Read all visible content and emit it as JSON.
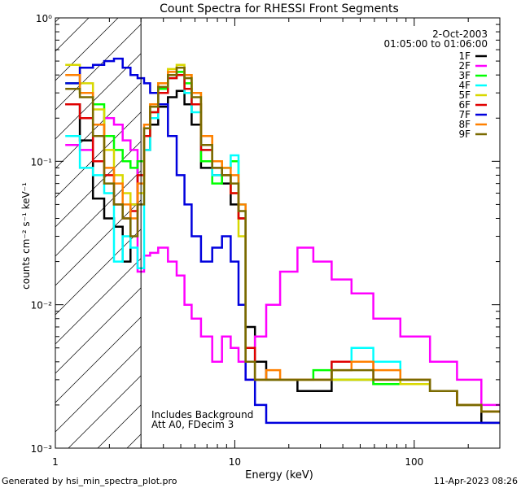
{
  "chart_data": {
    "type": "line",
    "title": "Count Spectra for RHESSI Front Segments",
    "xlabel": "Energy (keV)",
    "ylabel": "counts cm⁻² s⁻¹ keV⁻¹",
    "xscale": "log",
    "yscale": "log",
    "xlim": [
      1.0,
      300.0
    ],
    "ylim": [
      0.001,
      1.0
    ],
    "x_ticks": [
      {
        "v": 1,
        "label": "1"
      },
      {
        "v": 10,
        "label": "10"
      },
      {
        "v": 100,
        "label": "100"
      }
    ],
    "y_ticks": [
      {
        "v": 0.001,
        "label": "10⁻³"
      },
      {
        "v": 0.01,
        "label": "10⁻²"
      },
      {
        "v": 0.1,
        "label": "10⁻¹"
      },
      {
        "v": 1,
        "label": "10⁰"
      }
    ],
    "date": "2-Oct-2003",
    "time_range": "01:05:00 to 01:06:00",
    "legend_position": "top-right",
    "annotations": [
      "Includes Background",
      "Att A0, FDecim 3"
    ],
    "attenuator_cutoff_kev": 3.0,
    "series": [
      {
        "name": "1F",
        "color": "#000000",
        "x": [
          1.25,
          1.5,
          1.75,
          2.0,
          2.25,
          2.5,
          2.75,
          3.0,
          3.25,
          3.5,
          4.0,
          4.5,
          5.0,
          5.5,
          6.0,
          7.0,
          8.0,
          9.0,
          10.0,
          11.0,
          12.0,
          14.0,
          16.0,
          20.0,
          25.0,
          30.0,
          40.0,
          50.0,
          70.0,
          100.0,
          150.0,
          200.0,
          280.0
        ],
        "y": [
          0.25,
          0.14,
          0.055,
          0.04,
          0.035,
          0.02,
          0.05,
          0.1,
          0.12,
          0.18,
          0.24,
          0.28,
          0.31,
          0.25,
          0.18,
          0.09,
          0.08,
          0.07,
          0.05,
          0.04,
          0.007,
          0.004,
          0.003,
          0.003,
          0.0025,
          0.0025,
          0.003,
          0.003,
          0.0028,
          0.0028,
          0.0025,
          0.002,
          0.0015
        ]
      },
      {
        "name": "2F",
        "color": "#ff00ff",
        "x": [
          1.25,
          1.5,
          1.75,
          2.0,
          2.25,
          2.5,
          2.75,
          3.0,
          3.25,
          3.5,
          4.0,
          4.5,
          5.0,
          5.5,
          6.0,
          7.0,
          8.0,
          9.0,
          10.0,
          11.0,
          12.0,
          14.0,
          16.0,
          20.0,
          25.0,
          30.0,
          40.0,
          50.0,
          70.0,
          100.0,
          150.0,
          200.0,
          280.0
        ],
        "y": [
          0.13,
          0.12,
          0.15,
          0.2,
          0.18,
          0.14,
          0.12,
          0.017,
          0.022,
          0.023,
          0.025,
          0.02,
          0.016,
          0.01,
          0.008,
          0.006,
          0.004,
          0.006,
          0.005,
          0.004,
          0.003,
          0.006,
          0.01,
          0.017,
          0.025,
          0.02,
          0.015,
          0.012,
          0.008,
          0.006,
          0.004,
          0.003,
          0.002
        ]
      },
      {
        "name": "3F",
        "color": "#00ff00",
        "x": [
          1.25,
          1.5,
          1.75,
          2.0,
          2.25,
          2.5,
          2.75,
          3.0,
          3.25,
          3.5,
          4.0,
          4.5,
          5.0,
          5.5,
          6.0,
          7.0,
          8.0,
          9.0,
          10.0,
          11.0,
          12.0,
          14.0,
          16.0,
          20.0,
          25.0,
          30.0,
          40.0,
          50.0,
          70.0,
          100.0,
          150.0,
          200.0,
          280.0
        ],
        "y": [
          0.35,
          0.3,
          0.25,
          0.15,
          0.12,
          0.1,
          0.09,
          0.1,
          0.15,
          0.22,
          0.32,
          0.4,
          0.42,
          0.35,
          0.25,
          0.1,
          0.07,
          0.09,
          0.1,
          0.05,
          0.005,
          0.003,
          0.003,
          0.003,
          0.003,
          0.0035,
          0.003,
          0.003,
          0.0028,
          0.003,
          0.0025,
          0.002,
          0.0018
        ]
      },
      {
        "name": "4F",
        "color": "#00ffff",
        "x": [
          1.25,
          1.5,
          1.75,
          2.0,
          2.25,
          2.5,
          2.75,
          3.0,
          3.25,
          3.5,
          4.0,
          4.5,
          5.0,
          5.5,
          6.0,
          7.0,
          8.0,
          9.0,
          10.0,
          11.0,
          12.0,
          14.0,
          16.0,
          20.0,
          25.0,
          30.0,
          40.0,
          50.0,
          70.0,
          100.0,
          150.0,
          200.0,
          280.0
        ],
        "y": [
          0.15,
          0.09,
          0.08,
          0.06,
          0.02,
          0.03,
          0.025,
          0.018,
          0.12,
          0.2,
          0.3,
          0.38,
          0.4,
          0.3,
          0.22,
          0.12,
          0.08,
          0.09,
          0.11,
          0.05,
          0.004,
          0.003,
          0.003,
          0.003,
          0.003,
          0.003,
          0.004,
          0.005,
          0.004,
          0.003,
          0.0025,
          0.002,
          0.0018
        ]
      },
      {
        "name": "5F",
        "color": "#d8d800",
        "x": [
          1.25,
          1.5,
          1.75,
          2.0,
          2.25,
          2.5,
          2.75,
          3.0,
          3.25,
          3.5,
          4.0,
          4.5,
          5.0,
          5.5,
          6.0,
          7.0,
          8.0,
          9.0,
          10.0,
          11.0,
          12.0,
          14.0,
          16.0,
          20.0,
          25.0,
          30.0,
          40.0,
          50.0,
          70.0,
          100.0,
          150.0,
          200.0,
          280.0
        ],
        "y": [
          0.47,
          0.35,
          0.23,
          0.12,
          0.08,
          0.06,
          0.05,
          0.06,
          0.15,
          0.25,
          0.35,
          0.44,
          0.47,
          0.4,
          0.3,
          0.15,
          0.1,
          0.08,
          0.06,
          0.03,
          0.004,
          0.003,
          0.003,
          0.003,
          0.003,
          0.003,
          0.003,
          0.003,
          0.003,
          0.0028,
          0.0025,
          0.002,
          0.0018
        ]
      },
      {
        "name": "6F",
        "color": "#e00000",
        "x": [
          1.25,
          1.5,
          1.75,
          2.0,
          2.25,
          2.5,
          2.75,
          3.0,
          3.25,
          3.5,
          4.0,
          4.5,
          5.0,
          5.5,
          6.0,
          7.0,
          8.0,
          9.0,
          10.0,
          11.0,
          12.0,
          14.0,
          16.0,
          20.0,
          25.0,
          30.0,
          40.0,
          50.0,
          70.0,
          100.0,
          150.0,
          200.0,
          280.0
        ],
        "y": [
          0.25,
          0.2,
          0.1,
          0.08,
          0.05,
          0.04,
          0.045,
          0.08,
          0.15,
          0.22,
          0.3,
          0.38,
          0.4,
          0.32,
          0.25,
          0.12,
          0.09,
          0.08,
          0.06,
          0.04,
          0.005,
          0.003,
          0.003,
          0.003,
          0.003,
          0.003,
          0.004,
          0.004,
          0.003,
          0.003,
          0.0025,
          0.002,
          0.0018
        ]
      },
      {
        "name": "7F",
        "color": "#0000dd",
        "x": [
          1.25,
          1.5,
          1.75,
          2.0,
          2.25,
          2.5,
          2.75,
          3.0,
          3.25,
          3.5,
          4.0,
          4.5,
          5.0,
          5.5,
          6.0,
          7.0,
          8.0,
          9.0,
          10.0,
          11.0,
          12.0,
          14.0,
          16.0,
          20.0,
          25.0,
          30.0,
          40.0,
          50.0,
          70.0,
          100.0,
          150.0,
          200.0,
          280.0
        ],
        "y": [
          0.35,
          0.45,
          0.47,
          0.5,
          0.52,
          0.45,
          0.4,
          0.38,
          0.35,
          0.3,
          0.25,
          0.15,
          0.08,
          0.05,
          0.03,
          0.02,
          0.025,
          0.03,
          0.02,
          0.01,
          0.003,
          0.002,
          0.0015,
          0.0015,
          0.0015,
          0.0015,
          0.0015,
          0.0015,
          0.0015,
          0.0015,
          0.0015,
          0.0015,
          0.0015
        ]
      },
      {
        "name": "8F",
        "color": "#ff8000",
        "x": [
          1.25,
          1.5,
          1.75,
          2.0,
          2.25,
          2.5,
          2.75,
          3.0,
          3.25,
          3.5,
          4.0,
          4.5,
          5.0,
          5.5,
          6.0,
          7.0,
          8.0,
          9.0,
          10.0,
          11.0,
          12.0,
          14.0,
          16.0,
          20.0,
          25.0,
          30.0,
          40.0,
          50.0,
          70.0,
          100.0,
          150.0,
          200.0,
          280.0
        ],
        "y": [
          0.4,
          0.3,
          0.18,
          0.09,
          0.07,
          0.05,
          0.04,
          0.07,
          0.18,
          0.25,
          0.35,
          0.42,
          0.45,
          0.4,
          0.3,
          0.15,
          0.1,
          0.09,
          0.08,
          0.05,
          0.004,
          0.003,
          0.0035,
          0.003,
          0.003,
          0.003,
          0.0035,
          0.004,
          0.0035,
          0.003,
          0.0025,
          0.002,
          0.0018
        ]
      },
      {
        "name": "9F",
        "color": "#7a6a00",
        "x": [
          1.25,
          1.5,
          1.75,
          2.0,
          2.25,
          2.5,
          2.75,
          3.0,
          3.25,
          3.5,
          4.0,
          4.5,
          5.0,
          5.5,
          6.0,
          7.0,
          8.0,
          9.0,
          10.0,
          11.0,
          12.0,
          14.0,
          16.0,
          20.0,
          25.0,
          30.0,
          40.0,
          50.0,
          70.0,
          100.0,
          150.0,
          200.0,
          280.0
        ],
        "y": [
          0.32,
          0.28,
          0.15,
          0.07,
          0.05,
          0.04,
          0.03,
          0.05,
          0.17,
          0.24,
          0.33,
          0.4,
          0.45,
          0.38,
          0.28,
          0.13,
          0.09,
          0.08,
          0.07,
          0.045,
          0.004,
          0.003,
          0.003,
          0.003,
          0.003,
          0.003,
          0.0035,
          0.0035,
          0.003,
          0.003,
          0.0025,
          0.002,
          0.0018
        ]
      }
    ]
  },
  "footer": {
    "generated_by": "Generated by hsi_min_spectra_plot.pro",
    "timestamp": "11-Apr-2023 08:26"
  }
}
